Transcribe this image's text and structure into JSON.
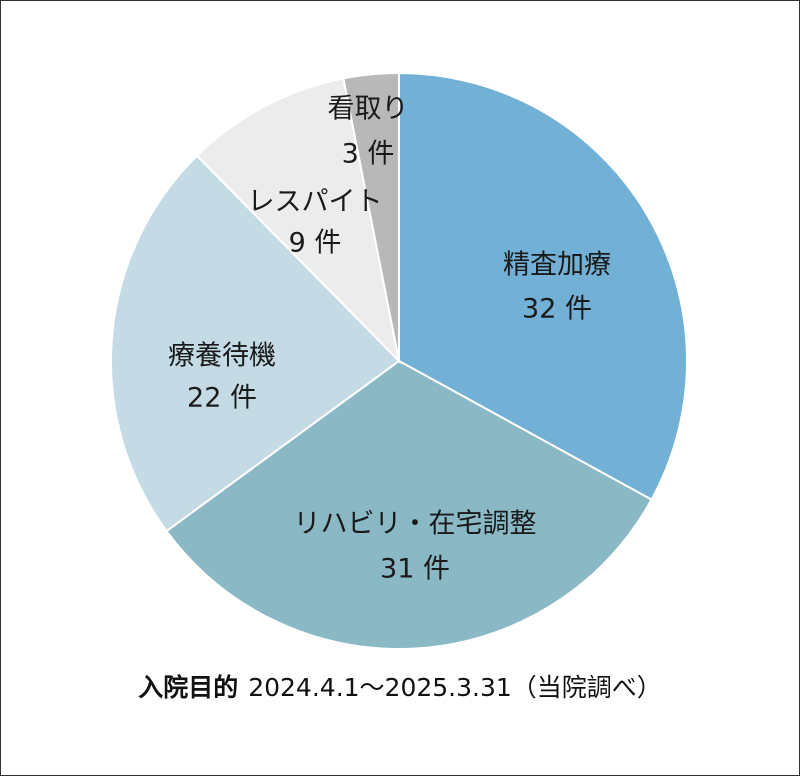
{
  "chart_data": {
    "type": "pie",
    "start_angle_deg": 0,
    "direction": "clockwise",
    "slices": [
      {
        "label": "精査加療",
        "value": 32,
        "value_text": "32 件",
        "color": "#72b0d5"
      },
      {
        "label": "リハビリ・在宅調整",
        "value": 31,
        "value_text": "31 件",
        "color": "#8ab8c5"
      },
      {
        "label": "療養待機",
        "value": 22,
        "value_text": "22 件",
        "color": "#c4dbe5"
      },
      {
        "label": "レスパイト",
        "value": 9,
        "value_text": "9 件",
        "color": "#ececec"
      },
      {
        "label": "看取り",
        "value": 3,
        "value_text": "3 件",
        "color": "#b8b8b8"
      }
    ]
  },
  "caption": {
    "bold": "入院目的",
    "text": "2024.4.1〜2025.3.31（当院調べ）"
  }
}
